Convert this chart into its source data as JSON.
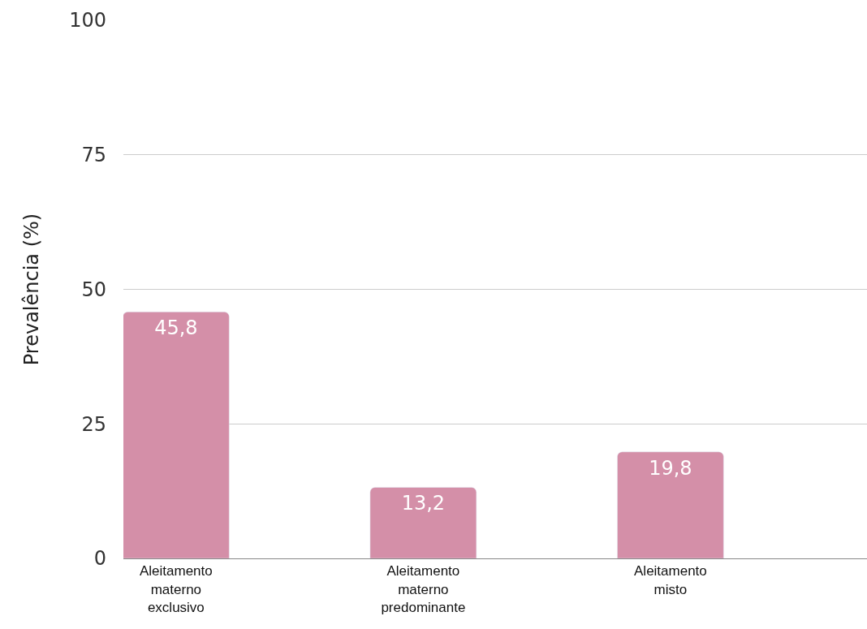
{
  "chart_data": {
    "type": "bar",
    "ylabel": "Prevalência (%)",
    "categories": [
      "Aleitamento materno exclusivo",
      "Aleitamento materno predominante",
      "Aleitamento misto"
    ],
    "values": [
      45.8,
      13.2,
      19.8
    ],
    "color": "#d48fa8",
    "value_labels": [
      "45,8",
      "13,2",
      "19,8"
    ],
    "ylim": [
      0,
      100
    ],
    "yticks": [
      0,
      25,
      50,
      75,
      100
    ],
    "grid": "y",
    "legend": false
  }
}
